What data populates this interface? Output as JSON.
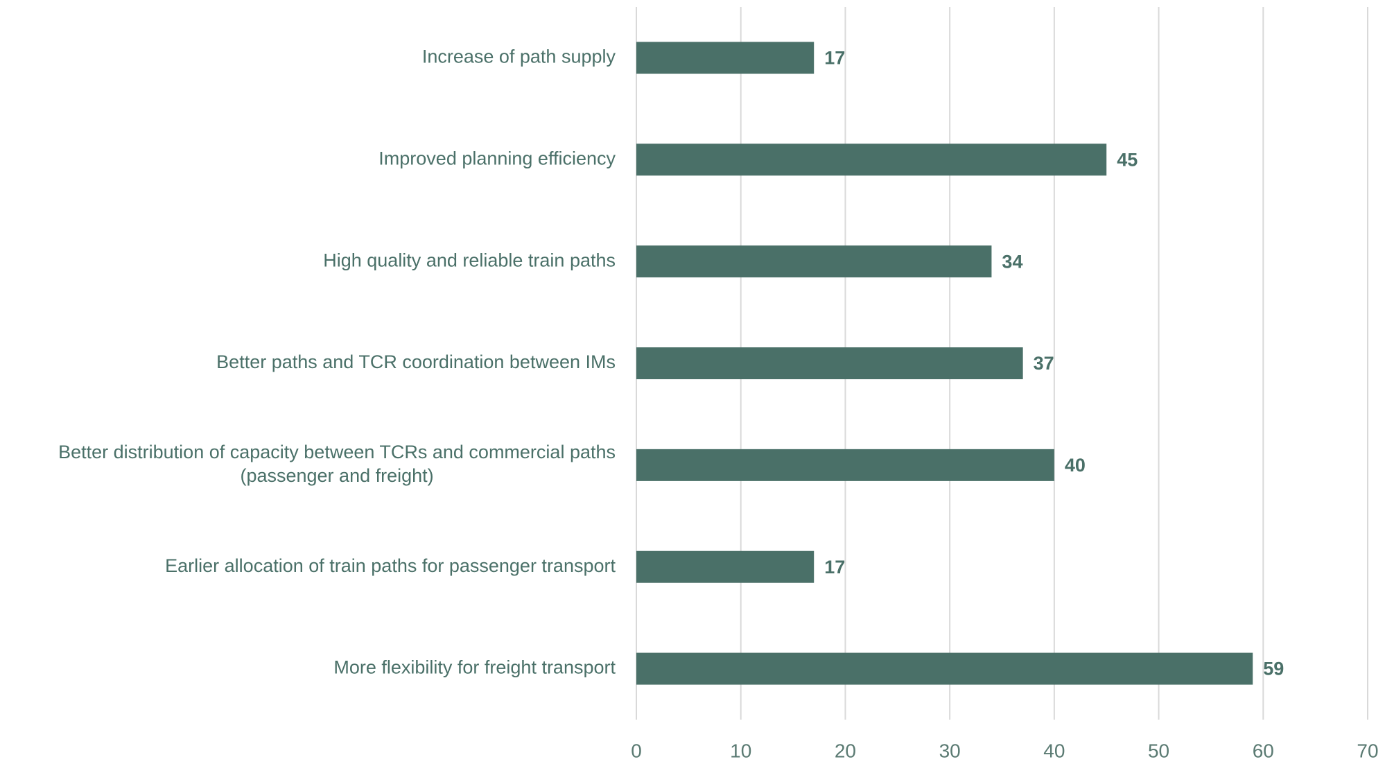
{
  "chart_data": {
    "type": "bar",
    "orientation": "horizontal",
    "categories": [
      "Increase of path supply",
      "Improved planning efficiency",
      "High quality and reliable train paths",
      "Better paths and TCR coordination between IMs",
      "Better distribution of capacity between TCRs and commercial paths\n(passenger and freight)",
      "Earlier allocation of train paths for passenger transport",
      "More flexibility for freight transport "
    ],
    "values": [
      17,
      45,
      34,
      37,
      40,
      17,
      59
    ],
    "color": "#4a7068",
    "xlim": [
      0,
      70
    ],
    "xticks": [
      0,
      10,
      20,
      30,
      40,
      50,
      60,
      70
    ],
    "grid": true
  }
}
